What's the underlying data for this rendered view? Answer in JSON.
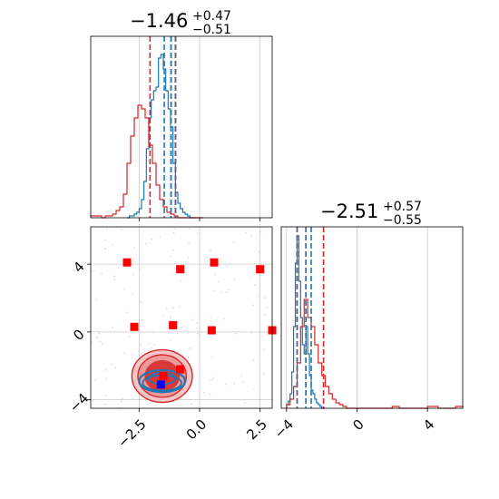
{
  "chart_data": [
    {
      "type": "histogram",
      "panel": "top-left",
      "title_main": "−1.46",
      "title_sup": "+0.47",
      "title_sub": "−0.51",
      "xlim": [
        -4.5,
        3.0
      ],
      "ylim": [
        0,
        1.0
      ],
      "vlines": {
        "red": [
          -2.05,
          -1.18,
          -1.0
        ],
        "blue": [
          -1.46,
          -1.18,
          -0.99
        ]
      },
      "series": [
        {
          "name": "",
          "color": "#1f77b4",
          "bin_start": -3.0,
          "bin_width": 0.1,
          "counts": [
            0,
            0.01,
            0.01,
            0.02,
            0.03,
            0.05,
            0.1,
            0.2,
            0.38,
            0.55,
            0.65,
            0.7,
            0.72,
            0.88,
            0.9,
            0.82,
            0.7,
            0.6,
            0.5,
            0.3,
            0.14,
            0.08,
            0.05,
            0.03,
            0.02,
            0.01,
            0,
            0
          ]
        },
        {
          "name": "",
          "color": "#d62728",
          "bin_start": -4.5,
          "bin_width": 0.15,
          "counts": [
            0.01,
            0.01,
            0.01,
            0.0,
            0.01,
            0.01,
            0.02,
            0.04,
            0.06,
            0.13,
            0.3,
            0.45,
            0.55,
            0.62,
            0.6,
            0.55,
            0.4,
            0.3,
            0.18,
            0.1,
            0.06,
            0.03,
            0.02,
            0.01,
            0,
            0,
            0,
            0,
            0,
            0,
            0
          ]
        }
      ]
    },
    {
      "type": "scatter",
      "panel": "bottom-left",
      "xlim": [
        -4.5,
        3.0
      ],
      "ylim": [
        -4.5,
        6.2
      ],
      "xticks": [
        -2.5,
        0.0,
        2.5
      ],
      "xtick_labels": [
        "−2.5",
        "0.0",
        "2.5"
      ],
      "yticks": [
        -4,
        0,
        4
      ],
      "ytick_labels": [
        "−4",
        "0",
        "4"
      ],
      "hlines": [
        4.0,
        0.0,
        -4.0
      ],
      "vlines": [
        2.5
      ],
      "red_markers": [
        [
          -3.0,
          4.1
        ],
        [
          -2.7,
          0.3
        ],
        [
          -1.1,
          0.4
        ],
        [
          -0.8,
          3.7
        ],
        [
          0.5,
          0.1
        ],
        [
          0.6,
          4.1
        ],
        [
          2.5,
          3.7
        ],
        [
          3.0,
          0.1
        ],
        [
          -1.5,
          -2.6
        ],
        [
          -0.8,
          -2.2
        ]
      ],
      "blue_markers": [
        [
          -1.6,
          -3.1
        ]
      ],
      "contours": {
        "red_center": [
          -1.55,
          -2.6
        ],
        "blue_center": [
          -1.55,
          -2.9
        ]
      }
    },
    {
      "type": "histogram",
      "panel": "bottom-right",
      "title_main": "−2.51",
      "title_sup": "+0.57",
      "title_sub": "−0.55",
      "xlim": [
        -4.3,
        6.0
      ],
      "ylim": [
        0,
        1.0
      ],
      "xticks": [
        -4,
        0,
        4
      ],
      "xtick_labels": [
        "−4",
        "0",
        "4"
      ],
      "vlines": {
        "red": [
          -3.4,
          -2.9,
          -1.9
        ],
        "blue": [
          -3.4,
          -2.9,
          -2.6
        ]
      },
      "series": [
        {
          "name": "",
          "color": "#1f77b4",
          "bin_start": -4.0,
          "bin_width": 0.1,
          "counts": [
            0.02,
            0.04,
            0.08,
            0.2,
            0.45,
            0.8,
            0.95,
            0.7,
            0.5,
            0.35,
            0.3,
            0.45,
            0.3,
            0.18,
            0.1,
            0.08,
            0.05,
            0.03,
            0.02,
            0.01,
            0,
            0
          ]
        },
        {
          "name": "",
          "color": "#d62728",
          "bin_start": -4.0,
          "bin_width": 0.2,
          "counts": [
            0.02,
            0.05,
            0.12,
            0.25,
            0.45,
            0.6,
            0.5,
            0.45,
            0.35,
            0.25,
            0.18,
            0.12,
            0.08,
            0.05,
            0.03,
            0.02,
            0.01,
            0,
            0,
            0,
            0,
            0,
            0,
            0,
            0,
            0,
            0,
            0,
            0,
            0,
            0.01,
            0.01,
            0.0,
            0.0,
            0.0,
            0.0,
            0.0,
            0.0,
            0.0,
            0.0,
            0.01,
            0.01,
            0.01,
            0.0,
            0.0,
            0.0,
            0.0,
            0.0,
            0.01,
            0.01
          ]
        }
      ]
    }
  ]
}
